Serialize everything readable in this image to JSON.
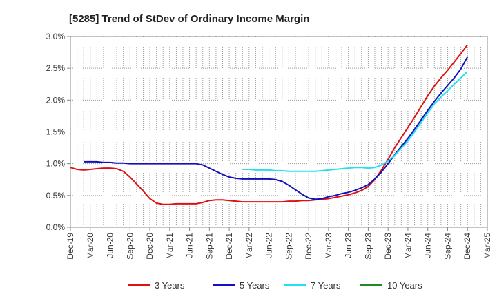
{
  "chart_data": {
    "type": "line",
    "title": "[5285]  Trend of StDev of Ordinary Income Margin",
    "xlabel": "",
    "ylabel": "",
    "ylim": [
      0,
      3.0
    ],
    "y_unit": "%",
    "y_ticks": [
      "0.0%",
      "0.5%",
      "1.0%",
      "1.5%",
      "2.0%",
      "2.5%",
      "3.0%"
    ],
    "y_tick_values": [
      0,
      0.5,
      1.0,
      1.5,
      2.0,
      2.5,
      3.0
    ],
    "x_ticks": [
      "Dec-19",
      "Mar-20",
      "Jun-20",
      "Sep-20",
      "Dec-20",
      "Mar-21",
      "Jun-21",
      "Sep-21",
      "Dec-21",
      "Mar-22",
      "Jun-22",
      "Sep-22",
      "Dec-22",
      "Mar-23",
      "Jun-23",
      "Sep-23",
      "Dec-23",
      "Mar-24",
      "Jun-24",
      "Sep-24",
      "Dec-24",
      "Mar-25"
    ],
    "grid": true,
    "legend_position": "bottom",
    "series": [
      {
        "name": "3 Years",
        "color": "#dd1111",
        "points": [
          [
            "Dec-19",
            0.94
          ],
          [
            "Jan-20",
            0.91
          ],
          [
            "Feb-20",
            0.9
          ],
          [
            "Mar-20",
            0.91
          ],
          [
            "Apr-20",
            0.92
          ],
          [
            "May-20",
            0.93
          ],
          [
            "Jun-20",
            0.93
          ],
          [
            "Jul-20",
            0.92
          ],
          [
            "Aug-20",
            0.88
          ],
          [
            "Sep-20",
            0.79
          ],
          [
            "Oct-20",
            0.68
          ],
          [
            "Nov-20",
            0.57
          ],
          [
            "Dec-20",
            0.45
          ],
          [
            "Jan-21",
            0.38
          ],
          [
            "Feb-21",
            0.36
          ],
          [
            "Mar-21",
            0.36
          ],
          [
            "Apr-21",
            0.37
          ],
          [
            "May-21",
            0.37
          ],
          [
            "Jun-21",
            0.37
          ],
          [
            "Jul-21",
            0.37
          ],
          [
            "Aug-21",
            0.39
          ],
          [
            "Sep-21",
            0.42
          ],
          [
            "Oct-21",
            0.43
          ],
          [
            "Nov-21",
            0.43
          ],
          [
            "Dec-21",
            0.42
          ],
          [
            "Jan-22",
            0.41
          ],
          [
            "Feb-22",
            0.4
          ],
          [
            "Mar-22",
            0.4
          ],
          [
            "Apr-22",
            0.4
          ],
          [
            "May-22",
            0.4
          ],
          [
            "Jun-22",
            0.4
          ],
          [
            "Jul-22",
            0.4
          ],
          [
            "Aug-22",
            0.4
          ],
          [
            "Sep-22",
            0.41
          ],
          [
            "Oct-22",
            0.41
          ],
          [
            "Nov-22",
            0.42
          ],
          [
            "Dec-22",
            0.42
          ],
          [
            "Jan-23",
            0.43
          ],
          [
            "Feb-23",
            0.44
          ],
          [
            "Mar-23",
            0.45
          ],
          [
            "Apr-23",
            0.47
          ],
          [
            "May-23",
            0.49
          ],
          [
            "Jun-23",
            0.51
          ],
          [
            "Jul-23",
            0.54
          ],
          [
            "Aug-23",
            0.58
          ],
          [
            "Sep-23",
            0.64
          ],
          [
            "Oct-23",
            0.75
          ],
          [
            "Nov-23",
            0.9
          ],
          [
            "Dec-23",
            1.07
          ],
          [
            "Jan-24",
            1.25
          ],
          [
            "Feb-24",
            1.41
          ],
          [
            "Mar-24",
            1.57
          ],
          [
            "Apr-24",
            1.73
          ],
          [
            "May-24",
            1.9
          ],
          [
            "Jun-24",
            2.07
          ],
          [
            "Jul-24",
            2.22
          ],
          [
            "Aug-24",
            2.35
          ],
          [
            "Sep-24",
            2.47
          ],
          [
            "Oct-24",
            2.6
          ],
          [
            "Nov-24",
            2.73
          ],
          [
            "Dec-24",
            2.87
          ]
        ]
      },
      {
        "name": "5 Years",
        "color": "#1111bb",
        "points": [
          [
            "Feb-20",
            1.03
          ],
          [
            "Mar-20",
            1.03
          ],
          [
            "Apr-20",
            1.03
          ],
          [
            "May-20",
            1.02
          ],
          [
            "Jun-20",
            1.02
          ],
          [
            "Jul-20",
            1.01
          ],
          [
            "Aug-20",
            1.01
          ],
          [
            "Sep-20",
            1.0
          ],
          [
            "Oct-20",
            1.0
          ],
          [
            "Nov-20",
            1.0
          ],
          [
            "Dec-20",
            1.0
          ],
          [
            "Jan-21",
            1.0
          ],
          [
            "Feb-21",
            1.0
          ],
          [
            "Mar-21",
            1.0
          ],
          [
            "Apr-21",
            1.0
          ],
          [
            "May-21",
            1.0
          ],
          [
            "Jun-21",
            1.0
          ],
          [
            "Jul-21",
            1.0
          ],
          [
            "Aug-21",
            0.98
          ],
          [
            "Sep-21",
            0.93
          ],
          [
            "Oct-21",
            0.88
          ],
          [
            "Nov-21",
            0.83
          ],
          [
            "Dec-21",
            0.79
          ],
          [
            "Jan-22",
            0.77
          ],
          [
            "Feb-22",
            0.76
          ],
          [
            "Mar-22",
            0.76
          ],
          [
            "Apr-22",
            0.76
          ],
          [
            "May-22",
            0.76
          ],
          [
            "Jun-22",
            0.76
          ],
          [
            "Jul-22",
            0.75
          ],
          [
            "Aug-22",
            0.72
          ],
          [
            "Sep-22",
            0.66
          ],
          [
            "Oct-22",
            0.59
          ],
          [
            "Nov-22",
            0.52
          ],
          [
            "Dec-22",
            0.46
          ],
          [
            "Jan-23",
            0.44
          ],
          [
            "Feb-23",
            0.45
          ],
          [
            "Mar-23",
            0.48
          ],
          [
            "Apr-23",
            0.5
          ],
          [
            "May-23",
            0.53
          ],
          [
            "Jun-23",
            0.55
          ],
          [
            "Jul-23",
            0.58
          ],
          [
            "Aug-23",
            0.62
          ],
          [
            "Sep-23",
            0.67
          ],
          [
            "Oct-23",
            0.76
          ],
          [
            "Nov-23",
            0.87
          ],
          [
            "Dec-23",
            1.0
          ],
          [
            "Jan-24",
            1.14
          ],
          [
            "Feb-24",
            1.27
          ],
          [
            "Mar-24",
            1.4
          ],
          [
            "Apr-24",
            1.54
          ],
          [
            "May-24",
            1.69
          ],
          [
            "Jun-24",
            1.84
          ],
          [
            "Jul-24",
            1.98
          ],
          [
            "Aug-24",
            2.11
          ],
          [
            "Sep-24",
            2.23
          ],
          [
            "Oct-24",
            2.35
          ],
          [
            "Nov-24",
            2.49
          ],
          [
            "Dec-24",
            2.68
          ]
        ]
      },
      {
        "name": "7 Years",
        "color": "#22e0f0",
        "points": [
          [
            "Feb-22",
            0.91
          ],
          [
            "Mar-22",
            0.91
          ],
          [
            "Apr-22",
            0.9
          ],
          [
            "May-22",
            0.9
          ],
          [
            "Jun-22",
            0.9
          ],
          [
            "Jul-22",
            0.89
          ],
          [
            "Aug-22",
            0.89
          ],
          [
            "Sep-22",
            0.88
          ],
          [
            "Oct-22",
            0.88
          ],
          [
            "Nov-22",
            0.88
          ],
          [
            "Dec-22",
            0.88
          ],
          [
            "Jan-23",
            0.88
          ],
          [
            "Feb-23",
            0.89
          ],
          [
            "Mar-23",
            0.9
          ],
          [
            "Apr-23",
            0.91
          ],
          [
            "May-23",
            0.92
          ],
          [
            "Jun-23",
            0.93
          ],
          [
            "Jul-23",
            0.94
          ],
          [
            "Aug-23",
            0.94
          ],
          [
            "Sep-23",
            0.93
          ],
          [
            "Oct-23",
            0.94
          ],
          [
            "Nov-23",
            0.98
          ],
          [
            "Dec-23",
            1.04
          ],
          [
            "Jan-24",
            1.13
          ],
          [
            "Feb-24",
            1.24
          ],
          [
            "Mar-24",
            1.36
          ],
          [
            "Apr-24",
            1.5
          ],
          [
            "May-24",
            1.65
          ],
          [
            "Jun-24",
            1.8
          ],
          [
            "Jul-24",
            1.94
          ],
          [
            "Aug-24",
            2.05
          ],
          [
            "Sep-24",
            2.15
          ],
          [
            "Oct-24",
            2.25
          ],
          [
            "Nov-24",
            2.35
          ],
          [
            "Dec-24",
            2.45
          ]
        ]
      },
      {
        "name": "10 Years",
        "color": "#228822",
        "points": []
      }
    ]
  }
}
